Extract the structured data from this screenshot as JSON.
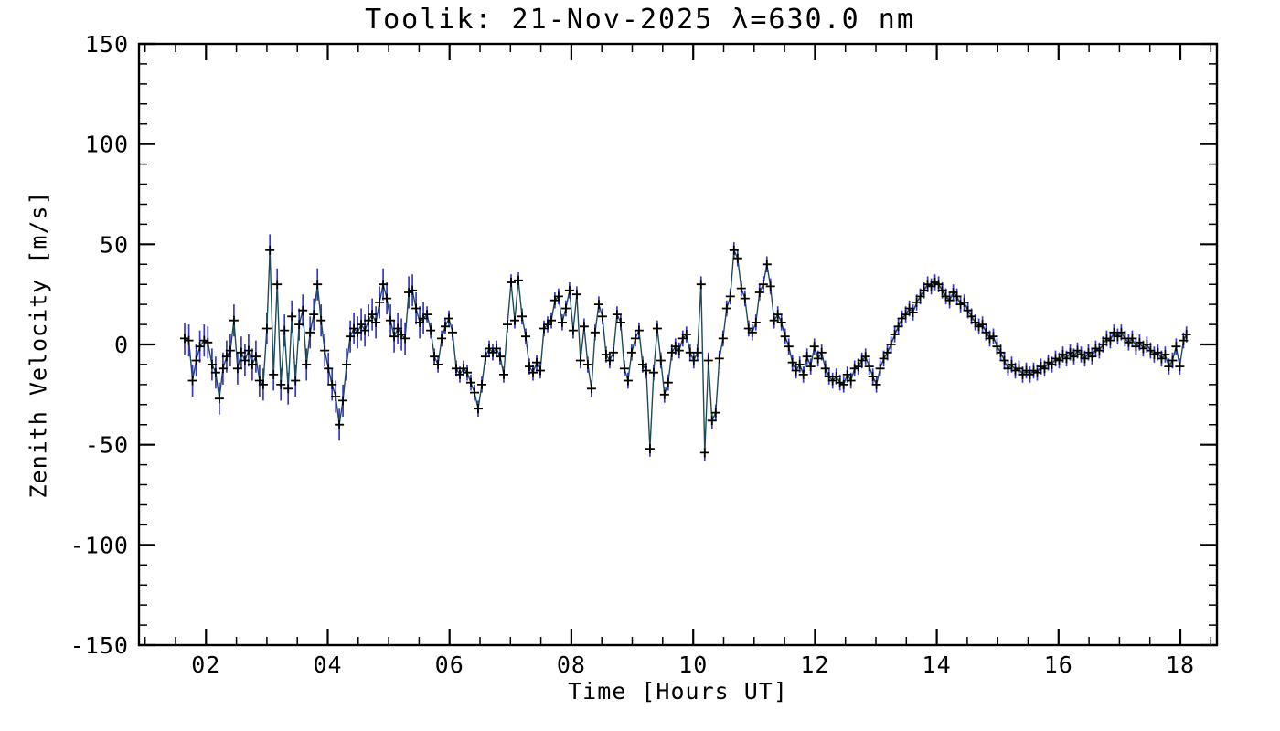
{
  "page": {
    "background_color": "#ffffff",
    "text_color": "#000000"
  },
  "chart_data": {
    "type": "line",
    "title": "Toolik: 21-Nov-2025 λ=630.0 nm",
    "xlabel": "Time [Hours UT]",
    "ylabel": "Zenith Velocity [m/s]",
    "xlim": [
      0.9,
      18.6
    ],
    "ylim": [
      -150,
      150
    ],
    "grid": false,
    "legend": null,
    "marker": "plus",
    "xticks": {
      "values": [
        2,
        4,
        6,
        8,
        10,
        12,
        14,
        16,
        18
      ],
      "labels": [
        "02",
        "04",
        "06",
        "08",
        "10",
        "12",
        "14",
        "16",
        "18"
      ],
      "minor_interval": 0.5
    },
    "yticks": {
      "values": [
        -150,
        -100,
        -50,
        0,
        50,
        100,
        150
      ],
      "labels": [
        "-150",
        "-100",
        "-50",
        "0",
        "50",
        "100",
        "150"
      ],
      "minor_interval": 10
    },
    "colors": {
      "line": "#1e4b58",
      "marker": "#000000",
      "error_bar": "#3838c8",
      "frame": "#000000",
      "background": "#ffffff"
    },
    "error_bar_half_length_by_time": [
      {
        "max_hour": 5.6,
        "half": 8
      },
      {
        "max_hour": 19,
        "half": 4
      }
    ],
    "series": [
      {
        "name": "zenith_velocity",
        "points": [
          [
            1.65,
            3
          ],
          [
            1.72,
            2
          ],
          [
            1.78,
            -18
          ],
          [
            1.84,
            -8
          ],
          [
            1.9,
            -1
          ],
          [
            1.97,
            2
          ],
          [
            2.03,
            1
          ],
          [
            2.1,
            -10
          ],
          [
            2.16,
            -14
          ],
          [
            2.22,
            -27
          ],
          [
            2.28,
            -12
          ],
          [
            2.34,
            -6
          ],
          [
            2.4,
            -3
          ],
          [
            2.46,
            12
          ],
          [
            2.52,
            -12
          ],
          [
            2.58,
            -4
          ],
          [
            2.64,
            -8
          ],
          [
            2.7,
            -3
          ],
          [
            2.76,
            -10
          ],
          [
            2.82,
            -6
          ],
          [
            2.88,
            -18
          ],
          [
            2.94,
            -20
          ],
          [
            3.0,
            8
          ],
          [
            3.05,
            47
          ],
          [
            3.11,
            -15
          ],
          [
            3.17,
            30
          ],
          [
            3.23,
            -20
          ],
          [
            3.29,
            7
          ],
          [
            3.35,
            -22
          ],
          [
            3.41,
            14
          ],
          [
            3.47,
            -18
          ],
          [
            3.53,
            10
          ],
          [
            3.59,
            17
          ],
          [
            3.65,
            -10
          ],
          [
            3.71,
            6
          ],
          [
            3.77,
            15
          ],
          [
            3.83,
            30
          ],
          [
            3.89,
            12
          ],
          [
            3.95,
            -3
          ],
          [
            4.01,
            -12
          ],
          [
            4.07,
            -20
          ],
          [
            4.13,
            -26
          ],
          [
            4.19,
            -40
          ],
          [
            4.25,
            -28
          ],
          [
            4.31,
            -10
          ],
          [
            4.37,
            4
          ],
          [
            4.43,
            8
          ],
          [
            4.49,
            6
          ],
          [
            4.55,
            10
          ],
          [
            4.61,
            7
          ],
          [
            4.67,
            12
          ],
          [
            4.73,
            15
          ],
          [
            4.79,
            11
          ],
          [
            4.85,
            21
          ],
          [
            4.91,
            30
          ],
          [
            4.97,
            23
          ],
          [
            5.03,
            12
          ],
          [
            5.09,
            4
          ],
          [
            5.15,
            8
          ],
          [
            5.21,
            5
          ],
          [
            5.27,
            3
          ],
          [
            5.33,
            26
          ],
          [
            5.39,
            27
          ],
          [
            5.45,
            18
          ],
          [
            5.51,
            11
          ],
          [
            5.57,
            13
          ],
          [
            5.63,
            15
          ],
          [
            5.69,
            7
          ],
          [
            5.75,
            -6
          ],
          [
            5.81,
            -10
          ],
          [
            5.87,
            3
          ],
          [
            5.93,
            9
          ],
          [
            5.99,
            13
          ],
          [
            6.05,
            6
          ],
          [
            6.11,
            -12
          ],
          [
            6.17,
            -15
          ],
          [
            6.23,
            -12
          ],
          [
            6.29,
            -14
          ],
          [
            6.35,
            -19
          ],
          [
            6.41,
            -24
          ],
          [
            6.47,
            -32
          ],
          [
            6.53,
            -20
          ],
          [
            6.59,
            -6
          ],
          [
            6.65,
            -2
          ],
          [
            6.71,
            -4
          ],
          [
            6.77,
            -2
          ],
          [
            6.83,
            -6
          ],
          [
            6.89,
            -15
          ],
          [
            6.95,
            10
          ],
          [
            7.01,
            31
          ],
          [
            7.07,
            12
          ],
          [
            7.13,
            32
          ],
          [
            7.19,
            14
          ],
          [
            7.25,
            4
          ],
          [
            7.31,
            -11
          ],
          [
            7.37,
            -14
          ],
          [
            7.43,
            -9
          ],
          [
            7.49,
            -13
          ],
          [
            7.55,
            8
          ],
          [
            7.61,
            10
          ],
          [
            7.67,
            12
          ],
          [
            7.73,
            22
          ],
          [
            7.79,
            24
          ],
          [
            7.85,
            11
          ],
          [
            7.91,
            18
          ],
          [
            7.97,
            27
          ],
          [
            8.03,
            7
          ],
          [
            8.09,
            25
          ],
          [
            8.15,
            -8
          ],
          [
            8.21,
            9
          ],
          [
            8.27,
            -10
          ],
          [
            8.33,
            -22
          ],
          [
            8.39,
            6
          ],
          [
            8.45,
            20
          ],
          [
            8.51,
            14
          ],
          [
            8.57,
            -5
          ],
          [
            8.63,
            -8
          ],
          [
            8.69,
            -4
          ],
          [
            8.75,
            15
          ],
          [
            8.81,
            11
          ],
          [
            8.87,
            -12
          ],
          [
            8.93,
            -18
          ],
          [
            8.99,
            -4
          ],
          [
            9.05,
            3
          ],
          [
            9.11,
            7
          ],
          [
            9.17,
            -10
          ],
          [
            9.23,
            -13
          ],
          [
            9.29,
            -52
          ],
          [
            9.35,
            -14
          ],
          [
            9.41,
            8
          ],
          [
            9.47,
            -8
          ],
          [
            9.53,
            -25
          ],
          [
            9.59,
            -19
          ],
          [
            9.65,
            -4
          ],
          [
            9.71,
            -1
          ],
          [
            9.77,
            -3
          ],
          [
            9.83,
            3
          ],
          [
            9.89,
            5
          ],
          [
            9.95,
            -4
          ],
          [
            10.01,
            -8
          ],
          [
            10.07,
            -4
          ],
          [
            10.13,
            30
          ],
          [
            10.19,
            -54
          ],
          [
            10.25,
            -8
          ],
          [
            10.31,
            -38
          ],
          [
            10.37,
            -34
          ],
          [
            10.43,
            -7
          ],
          [
            10.49,
            3
          ],
          [
            10.55,
            18
          ],
          [
            10.61,
            24
          ],
          [
            10.67,
            47
          ],
          [
            10.73,
            43
          ],
          [
            10.79,
            28
          ],
          [
            10.85,
            23
          ],
          [
            10.91,
            8
          ],
          [
            10.97,
            6
          ],
          [
            11.03,
            11
          ],
          [
            11.09,
            26
          ],
          [
            11.15,
            30
          ],
          [
            11.21,
            40
          ],
          [
            11.27,
            29
          ],
          [
            11.33,
            12
          ],
          [
            11.39,
            15
          ],
          [
            11.45,
            11
          ],
          [
            11.51,
            4
          ],
          [
            11.57,
            -1
          ],
          [
            11.63,
            -9
          ],
          [
            11.69,
            -13
          ],
          [
            11.75,
            -10
          ],
          [
            11.81,
            -15
          ],
          [
            11.87,
            -6
          ],
          [
            11.93,
            -11
          ],
          [
            11.99,
            -1
          ],
          [
            12.05,
            -7
          ],
          [
            12.11,
            -4
          ],
          [
            12.17,
            -12
          ],
          [
            12.23,
            -16
          ],
          [
            12.29,
            -18
          ],
          [
            12.35,
            -16
          ],
          [
            12.41,
            -19
          ],
          [
            12.47,
            -20
          ],
          [
            12.53,
            -15
          ],
          [
            12.59,
            -18
          ],
          [
            12.65,
            -12
          ],
          [
            12.71,
            -11
          ],
          [
            12.77,
            -8
          ],
          [
            12.83,
            -6
          ],
          [
            12.89,
            -11
          ],
          [
            12.95,
            -16
          ],
          [
            13.01,
            -20
          ],
          [
            13.07,
            -12
          ],
          [
            13.13,
            -7
          ],
          [
            13.19,
            -4
          ],
          [
            13.25,
            0
          ],
          [
            13.31,
            5
          ],
          [
            13.37,
            9
          ],
          [
            13.43,
            13
          ],
          [
            13.49,
            15
          ],
          [
            13.55,
            18
          ],
          [
            13.61,
            16
          ],
          [
            13.67,
            21
          ],
          [
            13.73,
            24
          ],
          [
            13.79,
            27
          ],
          [
            13.85,
            30
          ],
          [
            13.91,
            29
          ],
          [
            13.97,
            31
          ],
          [
            14.03,
            30
          ],
          [
            14.09,
            27
          ],
          [
            14.15,
            24
          ],
          [
            14.21,
            22
          ],
          [
            14.27,
            26
          ],
          [
            14.33,
            24
          ],
          [
            14.39,
            20
          ],
          [
            14.45,
            21
          ],
          [
            14.51,
            17
          ],
          [
            14.57,
            14
          ],
          [
            14.63,
            11
          ],
          [
            14.69,
            9
          ],
          [
            14.75,
            10
          ],
          [
            14.81,
            6
          ],
          [
            14.87,
            3
          ],
          [
            14.93,
            4
          ],
          [
            14.99,
            -1
          ],
          [
            15.05,
            -4
          ],
          [
            15.11,
            -8
          ],
          [
            15.17,
            -12
          ],
          [
            15.23,
            -10
          ],
          [
            15.29,
            -13
          ],
          [
            15.35,
            -12
          ],
          [
            15.41,
            -15
          ],
          [
            15.47,
            -13
          ],
          [
            15.53,
            -15
          ],
          [
            15.59,
            -13
          ],
          [
            15.65,
            -14
          ],
          [
            15.71,
            -11
          ],
          [
            15.77,
            -12
          ],
          [
            15.83,
            -9
          ],
          [
            15.89,
            -10
          ],
          [
            15.95,
            -7
          ],
          [
            16.01,
            -8
          ],
          [
            16.07,
            -5
          ],
          [
            16.13,
            -7
          ],
          [
            16.19,
            -4
          ],
          [
            16.25,
            -6
          ],
          [
            16.31,
            -3
          ],
          [
            16.37,
            -5
          ],
          [
            16.43,
            -7
          ],
          [
            16.49,
            -4
          ],
          [
            16.55,
            -6
          ],
          [
            16.61,
            -2
          ],
          [
            16.67,
            -3
          ],
          [
            16.73,
            0
          ],
          [
            16.79,
            3
          ],
          [
            16.85,
            2
          ],
          [
            16.91,
            6
          ],
          [
            16.97,
            4
          ],
          [
            17.03,
            6
          ],
          [
            17.09,
            3
          ],
          [
            17.15,
            1
          ],
          [
            17.21,
            3
          ],
          [
            17.27,
            -1
          ],
          [
            17.33,
            1
          ],
          [
            17.39,
            -2
          ],
          [
            17.45,
            0
          ],
          [
            17.51,
            -3
          ],
          [
            17.57,
            -5
          ],
          [
            17.63,
            -4
          ],
          [
            17.69,
            -7
          ],
          [
            17.75,
            -5
          ],
          [
            17.81,
            -11
          ],
          [
            17.87,
            -8
          ],
          [
            17.93,
            -1
          ],
          [
            17.99,
            -11
          ],
          [
            18.05,
            2
          ],
          [
            18.1,
            5
          ]
        ]
      }
    ]
  }
}
